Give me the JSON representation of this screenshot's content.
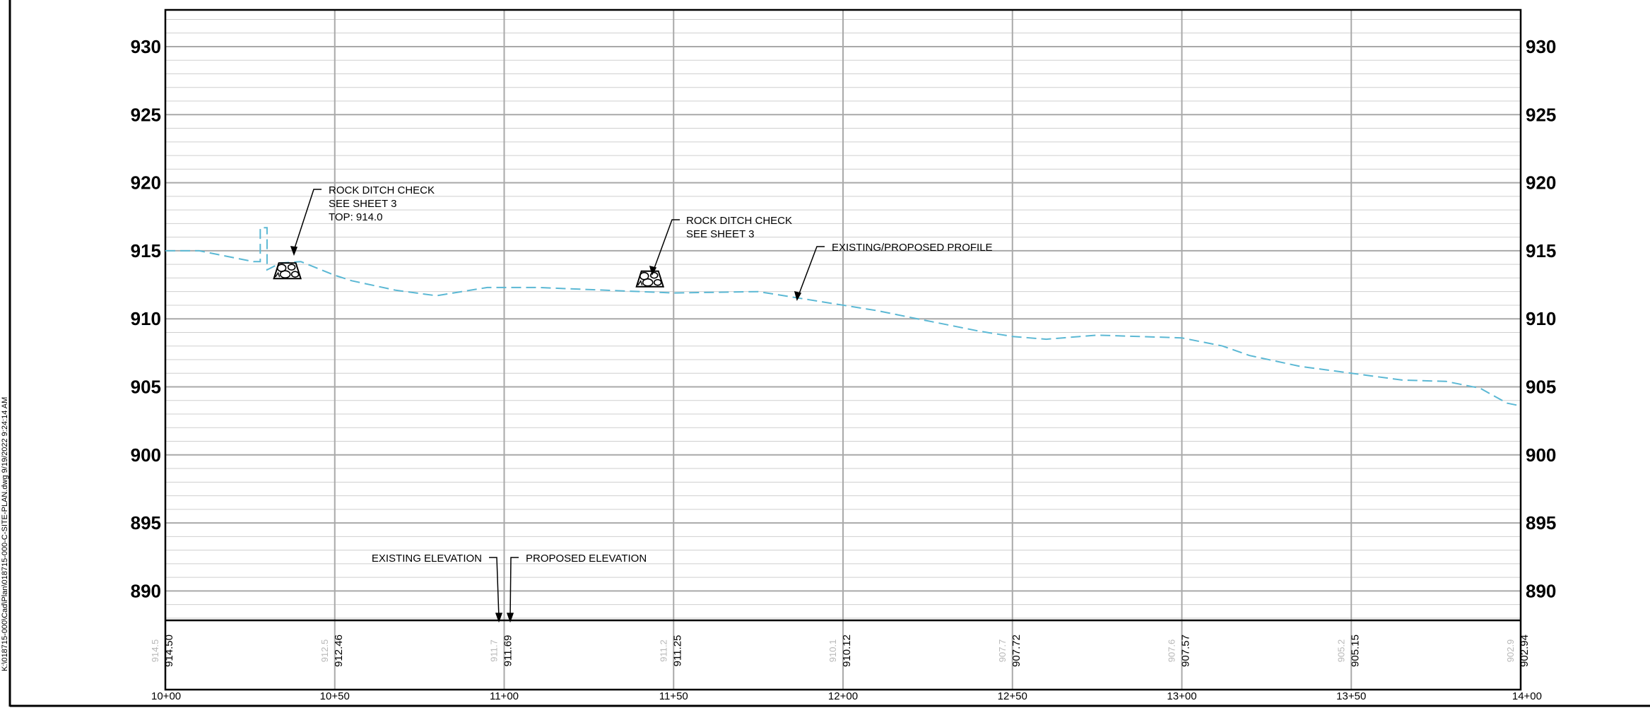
{
  "file_path": "K:\\018715-000\\Cad\\Plan\\018715-000-C-SITE-PLAN.dwg  9/19/2022 9:24:14 AM",
  "colors": {
    "profile_line": "#5bb8d4",
    "grid_major": "#a9a9a9",
    "grid_minor": "#cfcfcf",
    "existing_text": "#b8b8b8"
  },
  "chart_data": {
    "type": "line",
    "y_axis": {
      "range": [
        887.5,
        932
      ],
      "ticks": [
        930,
        925,
        920,
        915,
        910,
        905,
        900,
        895,
        890
      ]
    },
    "x_axis": {
      "range_ft": [
        1000,
        1400
      ],
      "stations": [
        "10+00",
        "10+50",
        "11+00",
        "11+50",
        "12+00",
        "12+50",
        "13+00",
        "13+50",
        "14+00"
      ]
    },
    "series": [
      {
        "style": "dashed",
        "points": [
          [
            1000,
            915.0
          ],
          [
            1010,
            915.0
          ],
          [
            1018,
            914.6
          ],
          [
            1026,
            914.2
          ],
          [
            1028,
            914.2
          ],
          [
            1028,
            916.7
          ],
          [
            1030,
            916.7
          ],
          [
            1030,
            913.6
          ],
          [
            1034,
            914.1
          ],
          [
            1040,
            914.2
          ],
          [
            1050,
            913.2
          ],
          [
            1055,
            912.8
          ],
          [
            1068,
            912.1
          ],
          [
            1080,
            911.7
          ],
          [
            1095,
            912.3
          ],
          [
            1110,
            912.3
          ],
          [
            1150,
            911.9
          ],
          [
            1175,
            912.0
          ],
          [
            1190,
            911.4
          ],
          [
            1210,
            910.6
          ],
          [
            1220,
            910.1
          ],
          [
            1240,
            909.1
          ],
          [
            1250,
            908.7
          ],
          [
            1260,
            908.5
          ],
          [
            1275,
            908.8
          ],
          [
            1300,
            908.6
          ],
          [
            1312,
            908.0
          ],
          [
            1320,
            907.3
          ],
          [
            1335,
            906.5
          ],
          [
            1350,
            906.0
          ],
          [
            1365,
            905.5
          ],
          [
            1378,
            905.4
          ],
          [
            1388,
            904.9
          ],
          [
            1396,
            903.8
          ],
          [
            1400,
            903.6
          ]
        ]
      }
    ],
    "elevations": [
      {
        "station": "10+00",
        "existing": "914.5",
        "proposed": "914.50"
      },
      {
        "station": "10+50",
        "existing": "912.5",
        "proposed": "912.46"
      },
      {
        "station": "11+00",
        "existing": "911.7",
        "proposed": "911.69"
      },
      {
        "station": "11+50",
        "existing": "911.2",
        "proposed": "911.25"
      },
      {
        "station": "12+00",
        "existing": "910.1",
        "proposed": "910.12"
      },
      {
        "station": "12+50",
        "existing": "907.7",
        "proposed": "907.72"
      },
      {
        "station": "13+00",
        "existing": "907.6",
        "proposed": "907.57"
      },
      {
        "station": "13+50",
        "existing": "905.2",
        "proposed": "905.15"
      },
      {
        "station": "14+00",
        "existing": "902.9",
        "proposed": "902.94"
      }
    ],
    "annotations": {
      "rock_check_1": [
        "ROCK DITCH CHECK",
        "SEE SHEET 3",
        "TOP: 914.0"
      ],
      "rock_check_2": [
        "ROCK DITCH CHECK",
        "SEE SHEET 3"
      ],
      "profile": "EXISTING/PROPOSED PROFILE",
      "existing_elevation": "EXISTING ELEVATION",
      "proposed_elevation": "PROPOSED ELEVATION"
    },
    "rock_checks": [
      {
        "station_ft": 1036,
        "elev": 914.0
      },
      {
        "station_ft": 1143,
        "elev": 913.4
      }
    ]
  }
}
